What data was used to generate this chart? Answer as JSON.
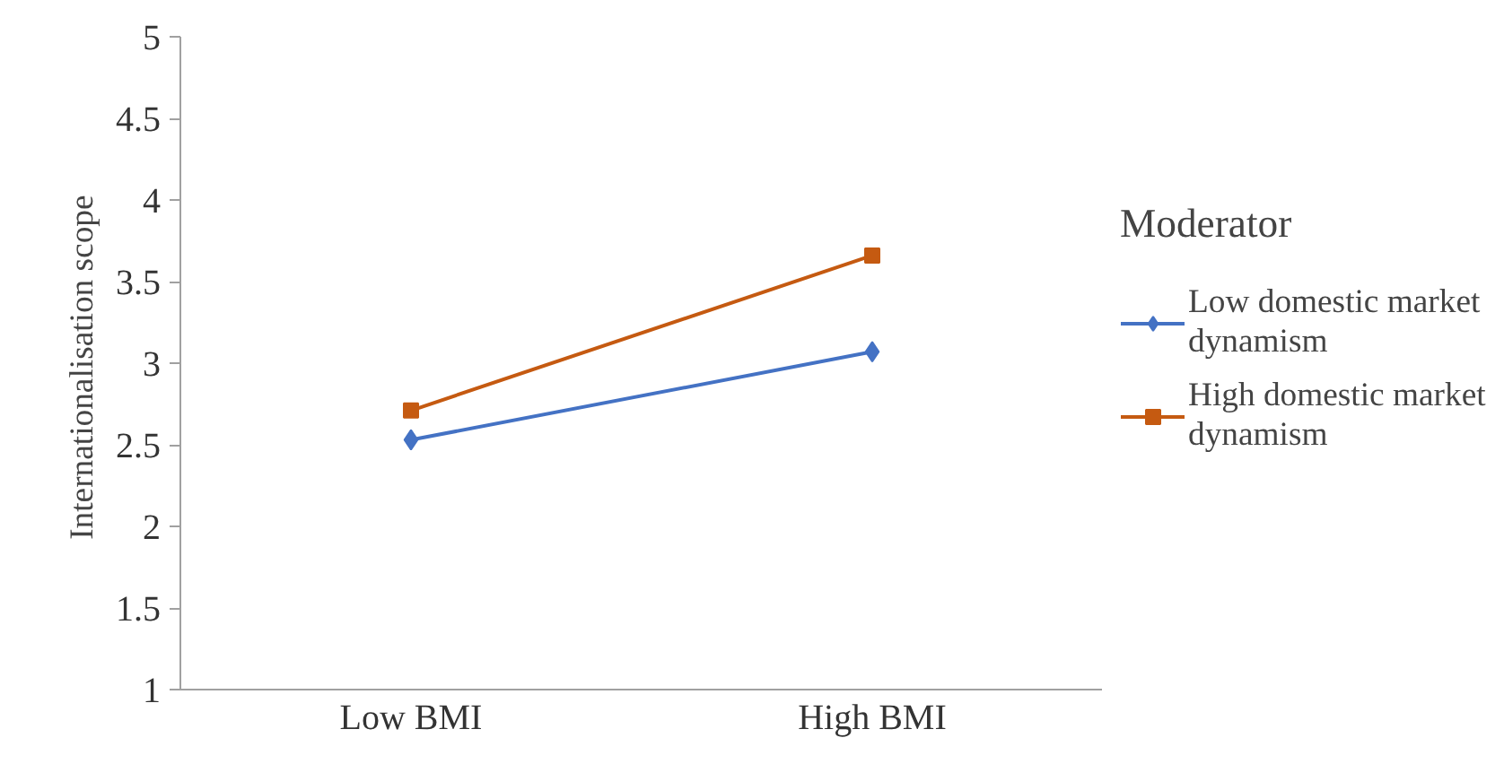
{
  "chart_data": {
    "type": "line",
    "ylabel": "Internationalisation  scope",
    "legend_title": "Moderator",
    "categories": [
      "Low BMI",
      "High BMI"
    ],
    "series": [
      {
        "name": "Low domestic market dynamism",
        "color": "#4472c4",
        "marker": "diamond",
        "values": [
          2.53,
          3.07
        ]
      },
      {
        "name": "High domestic market dynamism",
        "color": "#c55a11",
        "marker": "square",
        "values": [
          2.71,
          3.66
        ]
      }
    ],
    "ylim": [
      1,
      5
    ],
    "yticks": [
      1,
      1.5,
      2,
      2.5,
      3,
      3.5,
      4,
      4.5,
      5
    ],
    "grid": false,
    "legend": "right",
    "line_style": "solid"
  }
}
